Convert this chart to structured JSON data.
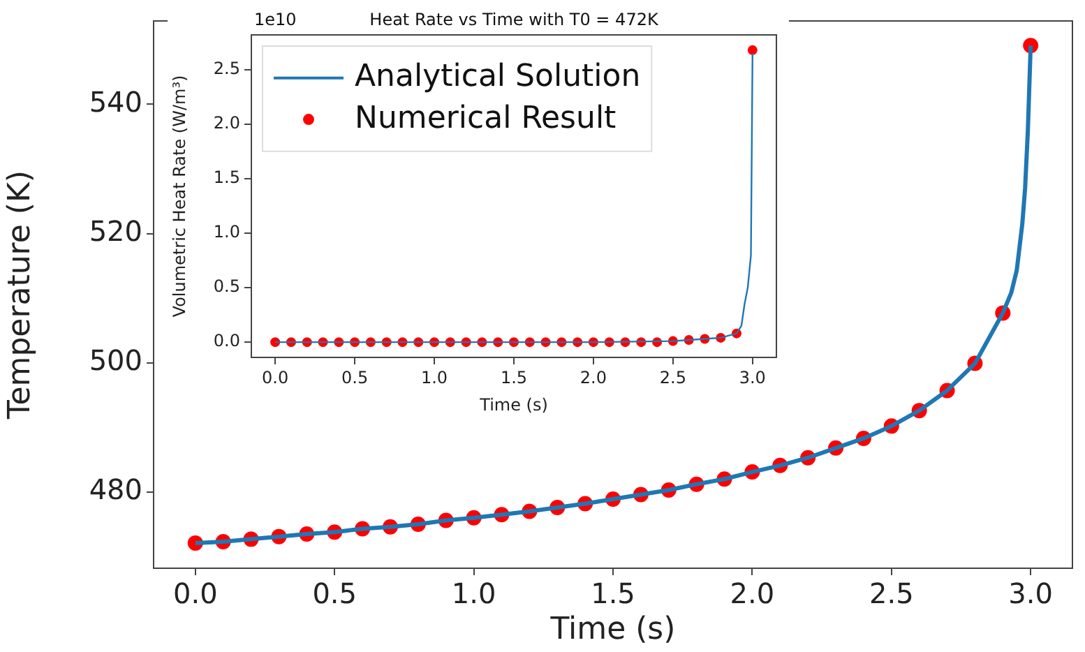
{
  "chart_data": [
    {
      "type": "line",
      "xlabel": "Time (s)",
      "ylabel": "Temperature (K)",
      "xlim": [
        -0.15,
        3.15
      ],
      "ylim": [
        468.2,
        552.9
      ],
      "xticks": [
        {
          "value": 0,
          "label": "0.0"
        },
        {
          "value": 0.5,
          "label": "0.5"
        },
        {
          "value": 1,
          "label": "1.0"
        },
        {
          "value": 1.5,
          "label": "1.5"
        },
        {
          "value": 2,
          "label": "2.0"
        },
        {
          "value": 2.5,
          "label": "2.5"
        },
        {
          "value": 3,
          "label": "3.0"
        }
      ],
      "yticks": [
        480,
        500,
        520,
        540
      ],
      "series": [
        {
          "color": "#1f77b4",
          "x": [
            0,
            0.1,
            0.2,
            0.3,
            0.4,
            0.5,
            0.6,
            0.7,
            0.8,
            0.9,
            1.0,
            1.1,
            1.2,
            1.3,
            1.4,
            1.5,
            1.6,
            1.7,
            1.8,
            1.9,
            2.0,
            2.1,
            2.2,
            2.3,
            2.4,
            2.5,
            2.6,
            2.7,
            2.8,
            2.9,
            2.93,
            2.95,
            2.97,
            2.98,
            2.99,
            3.0
          ],
          "values": [
            472.1,
            472.3,
            472.7,
            473.1,
            473.5,
            473.8,
            474.3,
            474.6,
            475.0,
            475.6,
            476.0,
            476.5,
            477.0,
            477.6,
            478.2,
            478.9,
            479.6,
            480.3,
            481.2,
            482.0,
            483.1,
            484.1,
            485.3,
            486.8,
            488.3,
            490.2,
            492.6,
            495.7,
            499.9,
            507.7,
            510.8,
            514.3,
            521.5,
            527,
            536,
            549.1
          ]
        },
        {
          "type": "scatter",
          "color": "#ff0000",
          "marker": "circle",
          "x": [
            0,
            0.1,
            0.2,
            0.3,
            0.4,
            0.5,
            0.6,
            0.7,
            0.8,
            0.9,
            1.0,
            1.1,
            1.2,
            1.3,
            1.4,
            1.5,
            1.6,
            1.7,
            1.8,
            1.9,
            2.0,
            2.1,
            2.2,
            2.3,
            2.4,
            2.5,
            2.6,
            2.7,
            2.8,
            2.9,
            3.0
          ],
          "values": [
            472.1,
            472.3,
            472.7,
            473.1,
            473.5,
            473.8,
            474.3,
            474.6,
            475.0,
            475.6,
            476.0,
            476.5,
            477.0,
            477.6,
            478.2,
            478.9,
            479.6,
            480.3,
            481.2,
            482.0,
            483.1,
            484.1,
            485.3,
            486.8,
            488.3,
            490.2,
            492.6,
            495.7,
            499.9,
            507.7,
            549.1
          ]
        }
      ]
    },
    {
      "type": "line",
      "title": "Heat Rate vs Time with T0 = 472K",
      "xlabel": "Time (s)",
      "ylabel": "Volumetric Heat Rate (W/m³)",
      "annotations": [
        "1e10"
      ],
      "legend": "top left",
      "xlim": [
        -0.15,
        3.15
      ],
      "ylim": [
        -0.14,
        2.82
      ],
      "xticks": [
        {
          "value": 0,
          "label": "0.0"
        },
        {
          "value": 0.5,
          "label": "0.5"
        },
        {
          "value": 1,
          "label": "1.0"
        },
        {
          "value": 1.5,
          "label": "1.5"
        },
        {
          "value": 2,
          "label": "2.0"
        },
        {
          "value": 2.5,
          "label": "2.5"
        },
        {
          "value": 3,
          "label": "3.0"
        }
      ],
      "yticks": [
        {
          "value": 0,
          "label": "0.0"
        },
        {
          "value": 0.5,
          "label": "0.5"
        },
        {
          "value": 1,
          "label": "1.0"
        },
        {
          "value": 1.5,
          "label": "1.5"
        },
        {
          "value": 2,
          "label": "2.0"
        },
        {
          "value": 2.5,
          "label": "2.5"
        }
      ],
      "series": [
        {
          "name": "Analytical Solution",
          "color": "#1f77b4",
          "x": [
            0,
            0.5,
            1.0,
            1.5,
            2.0,
            2.5,
            2.6,
            2.7,
            2.8,
            2.9,
            2.93,
            2.95,
            2.97,
            2.99,
            3.0
          ],
          "values": [
            0,
            0,
            0,
            0,
            0,
            0.01,
            0.02,
            0.03,
            0.04,
            0.08,
            0.15,
            0.35,
            0.5,
            0.8,
            2.65
          ]
        },
        {
          "type": "scatter",
          "name": "Numerical Result",
          "color": "#ff0000",
          "marker": "circle",
          "x": [
            0,
            0.1,
            0.2,
            0.3,
            0.4,
            0.5,
            0.6,
            0.7,
            0.8,
            0.9,
            1.0,
            1.1,
            1.2,
            1.3,
            1.4,
            1.5,
            1.6,
            1.7,
            1.8,
            1.9,
            2.0,
            2.1,
            2.2,
            2.3,
            2.4,
            2.5,
            2.6,
            2.7,
            2.8,
            2.9,
            3.0
          ],
          "values": [
            0,
            0,
            0,
            0,
            0,
            0,
            0,
            0,
            0,
            0,
            0,
            0,
            0,
            0,
            0,
            0,
            0,
            0,
            0,
            0,
            0,
            0,
            0,
            0,
            0,
            0.01,
            0.02,
            0.03,
            0.04,
            0.08,
            2.68
          ]
        }
      ]
    }
  ]
}
